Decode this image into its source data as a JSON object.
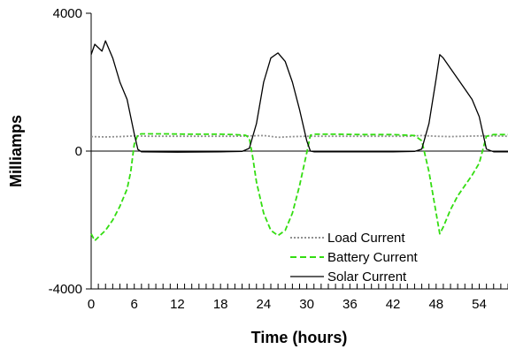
{
  "chart_data": {
    "type": "line",
    "title": "",
    "xlabel": "Time (hours)",
    "ylabel": "Milliamps",
    "xlim": [
      0,
      58
    ],
    "ylim": [
      -4000,
      4000
    ],
    "x_ticks": [
      0,
      6,
      12,
      18,
      24,
      30,
      36,
      42,
      48,
      54
    ],
    "x_tick_labels": [
      "0",
      "6",
      "12",
      "18",
      "24",
      "30",
      "36",
      "42",
      "48",
      "54"
    ],
    "y_ticks": [
      -4000,
      0,
      4000
    ],
    "y_tick_labels": [
      "-4000",
      "0",
      "4000"
    ],
    "grid": false,
    "legend_position": "bottom-right",
    "series": [
      {
        "name": "Load Current",
        "color": "#909090",
        "style": "dotted",
        "x": [
          0,
          2,
          4,
          6,
          8,
          12,
          16,
          20,
          22,
          24,
          26,
          28,
          30,
          32,
          36,
          40,
          44,
          46,
          48,
          50,
          52,
          54,
          56,
          58
        ],
        "y": [
          420,
          410,
          420,
          440,
          430,
          430,
          430,
          430,
          440,
          450,
          400,
          420,
          430,
          430,
          430,
          430,
          430,
          450,
          430,
          420,
          430,
          440,
          440,
          430
        ]
      },
      {
        "name": "Battery Current",
        "color": "#33dd11",
        "style": "dashed",
        "x": [
          0,
          0.5,
          1,
          2,
          3,
          4,
          5,
          5.5,
          6,
          6.5,
          7,
          10,
          14,
          18,
          20,
          21.5,
          22,
          22.5,
          23,
          24,
          25,
          26,
          27,
          28,
          29,
          30,
          30.5,
          31,
          34,
          38,
          42,
          45,
          46,
          47,
          48,
          48.5,
          49,
          50,
          51,
          52,
          53,
          54,
          55,
          56,
          58
        ],
        "y": [
          -2400,
          -2600,
          -2500,
          -2300,
          -2000,
          -1600,
          -1100,
          -600,
          200,
          480,
          500,
          500,
          490,
          490,
          480,
          460,
          380,
          -200,
          -900,
          -1800,
          -2300,
          -2450,
          -2300,
          -1800,
          -1000,
          -50,
          460,
          490,
          490,
          480,
          480,
          450,
          300,
          -600,
          -1800,
          -2400,
          -2200,
          -1700,
          -1300,
          -1000,
          -700,
          -350,
          430,
          480,
          480
        ]
      },
      {
        "name": "Solar Current",
        "color": "#000000",
        "style": "solid",
        "x": [
          0,
          0.5,
          1,
          1.5,
          2,
          3,
          4,
          5,
          6,
          6.5,
          7,
          12,
          18,
          21,
          22,
          23,
          24,
          25,
          26,
          27,
          28,
          29,
          30,
          30.5,
          31,
          36,
          42,
          45,
          46,
          47,
          48,
          48.5,
          49,
          50,
          51,
          52,
          53,
          54,
          55,
          56,
          58
        ],
        "y": [
          2800,
          3100,
          3000,
          2900,
          3200,
          2700,
          2000,
          1500,
          500,
          50,
          -20,
          -30,
          -20,
          -10,
          80,
          800,
          2000,
          2700,
          2850,
          2600,
          2000,
          1200,
          300,
          0,
          -20,
          -20,
          -20,
          -10,
          60,
          800,
          2100,
          2800,
          2700,
          2400,
          2100,
          1800,
          1500,
          1000,
          60,
          -20,
          -20
        ]
      }
    ]
  }
}
